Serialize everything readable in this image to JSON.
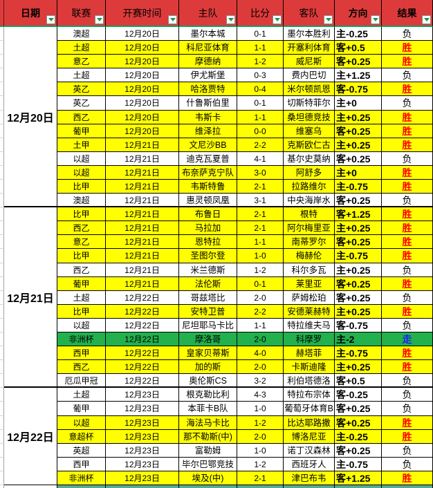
{
  "header": {
    "columns": [
      "日期",
      "联赛",
      "开赛时间",
      "主队",
      "比分",
      "客队",
      "方向",
      "结果"
    ],
    "filter_icon": "dropdown-arrow"
  },
  "date_groups": [
    {
      "label": "12月20日",
      "rows": 13
    },
    {
      "label": "12月21日",
      "rows": 13
    },
    {
      "label": "12月22日",
      "rows": 7
    }
  ],
  "rows": [
    {
      "league": "澳超",
      "kickoff": "12月20日",
      "home": "墨尔本城",
      "score": "0-1",
      "away": "墨尔本胜利",
      "direction": "主-0.25",
      "result": "负",
      "status": "lose"
    },
    {
      "league": "土超",
      "kickoff": "12月20日",
      "home": "科尼亚体育",
      "score": "1-1",
      "away": "开塞利体育",
      "direction": "客+0.5",
      "result": "胜",
      "status": "win"
    },
    {
      "league": "意乙",
      "kickoff": "12月20日",
      "home": "摩德纳",
      "score": "1-2",
      "away": "威尼斯",
      "direction": "客+0.25",
      "result": "胜",
      "status": "win"
    },
    {
      "league": "土超",
      "kickoff": "12月20日",
      "home": "伊尤斯堡",
      "score": "0-3",
      "away": "费内巴切",
      "direction": "主+1.25",
      "result": "负",
      "status": "lose"
    },
    {
      "league": "英乙",
      "kickoff": "12月20日",
      "home": "哈洛贾特",
      "score": "0-4",
      "away": "米尔顿凯恩斯",
      "direction": "客-0.75",
      "result": "胜",
      "status": "win"
    },
    {
      "league": "英乙",
      "kickoff": "12月20日",
      "home": "什鲁斯伯里",
      "score": "0-1",
      "away": "切斯特菲尔德",
      "direction": "主+0",
      "result": "负",
      "status": "lose"
    },
    {
      "league": "西乙",
      "kickoff": "12月20日",
      "home": "韦斯卡",
      "score": "1-1",
      "away": "桑坦德竞技",
      "direction": "主+0.25",
      "result": "胜",
      "status": "win"
    },
    {
      "league": "葡甲",
      "kickoff": "12月20日",
      "home": "维泽拉",
      "score": "0-0",
      "away": "维塞乌",
      "direction": "客+0.25",
      "result": "胜",
      "status": "win"
    },
    {
      "league": "土甲",
      "kickoff": "12月21日",
      "home": "文尼沙BB",
      "score": "2-2",
      "away": "克斯欧仁古库",
      "direction": "主+0.25",
      "result": "胜",
      "status": "win"
    },
    {
      "league": "以超",
      "kickoff": "12月21日",
      "home": "迪克瓦夏普",
      "score": "4-1",
      "away": "基尔史莫纳夏普尔",
      "direction": "客+0.25",
      "result": "负",
      "status": "lose"
    },
    {
      "league": "以超",
      "kickoff": "12月21日",
      "home": "布奈萨克宁队",
      "score": "3-0",
      "away": "阿舒多",
      "direction": "主+0",
      "result": "胜",
      "status": "win"
    },
    {
      "league": "比甲",
      "kickoff": "12月21日",
      "home": "韦斯特鲁",
      "score": "2-1",
      "away": "拉路维尔",
      "direction": "主-0.75",
      "result": "胜",
      "status": "win"
    },
    {
      "league": "澳超",
      "kickoff": "12月21日",
      "home": "惠灵顿凤凰",
      "score": "3-1",
      "away": "中央海岸水手",
      "direction": "客+0.25",
      "result": "负",
      "status": "lose"
    },
    {
      "league": "比甲",
      "kickoff": "12月21日",
      "home": "布鲁日",
      "score": "2-1",
      "away": "根特",
      "direction": "客+1.25",
      "result": "胜",
      "status": "win"
    },
    {
      "league": "西乙",
      "kickoff": "12月21日",
      "home": "马拉加",
      "score": "2-1",
      "away": "阿尔梅里亚",
      "direction": "主+0.25",
      "result": "胜",
      "status": "win"
    },
    {
      "league": "意乙",
      "kickoff": "12月21日",
      "home": "恩特拉",
      "score": "1-1",
      "away": "南蒂罗尔",
      "direction": "客+0.25",
      "result": "胜",
      "status": "win"
    },
    {
      "league": "比甲",
      "kickoff": "12月21日",
      "home": "圣图尔登",
      "score": "1-0",
      "away": "梅赫伦",
      "direction": "主-0.75",
      "result": "胜",
      "status": "win"
    },
    {
      "league": "西乙",
      "kickoff": "12月21日",
      "home": "米兰德斯",
      "score": "1-2",
      "away": "科尔多瓦",
      "direction": "主+0.25",
      "result": "负",
      "status": "lose"
    },
    {
      "league": "葡甲",
      "kickoff": "12月21日",
      "home": "法伦斯",
      "score": "0-1",
      "away": "莱里亚",
      "direction": "客+0.25",
      "result": "胜",
      "status": "win"
    },
    {
      "league": "土超",
      "kickoff": "12月22日",
      "home": "哥兹塔比",
      "score": "2-0",
      "away": "萨姆松珀",
      "direction": "客+0.25",
      "result": "负",
      "status": "lose"
    },
    {
      "league": "比甲",
      "kickoff": "12月22日",
      "home": "安特卫普",
      "score": "2-2",
      "away": "安德莱赫特",
      "direction": "主+0.25",
      "result": "胜",
      "status": "win"
    },
    {
      "league": "以超",
      "kickoff": "12月22日",
      "home": "尼坦耶马卡比",
      "score": "1-1",
      "away": "特拉维夫马卡比",
      "direction": "客-0.75",
      "result": "负",
      "status": "lose"
    },
    {
      "league": "非洲杯",
      "kickoff": "12月22日",
      "home": "摩洛哥",
      "score": "2-0",
      "away": "科摩罗",
      "direction": "主-2",
      "result": "走",
      "status": "draw"
    },
    {
      "league": "西甲",
      "kickoff": "12月22日",
      "home": "皇家贝蒂斯",
      "score": "4-0",
      "away": "赫塔菲",
      "direction": "主-0.75",
      "result": "胜",
      "status": "win"
    },
    {
      "league": "西乙",
      "kickoff": "12月22日",
      "home": "加的斯",
      "score": "2-0",
      "away": "卡斯迪隆",
      "direction": "主+0.25",
      "result": "胜",
      "status": "win"
    },
    {
      "league": "厄瓜甲冠",
      "kickoff": "12月22日",
      "home": "奥伦斯CS",
      "score": "3-2",
      "away": "利伯塔德洛哈",
      "direction": "客+0.5",
      "result": "负",
      "status": "lose"
    },
    {
      "league": "土超",
      "kickoff": "12月23日",
      "home": "根克勒比利",
      "score": "4-3",
      "away": "特拉布宗体育",
      "direction": "客-0.25",
      "result": "负",
      "status": "lose"
    },
    {
      "league": "葡甲",
      "kickoff": "12月23日",
      "home": "本菲卡B队",
      "score": "1-0",
      "away": "葡萄牙体育B",
      "direction": "客+0.25",
      "result": "负",
      "status": "lose"
    },
    {
      "league": "以超",
      "kickoff": "12月23日",
      "home": "海法马卡比",
      "score": "1-2",
      "away": "比达耶路撒冷",
      "direction": "客+0.25",
      "result": "胜",
      "status": "win"
    },
    {
      "league": "意超杯",
      "kickoff": "12月23日",
      "home": "那不勒斯(中)",
      "score": "2-0",
      "away": "博洛尼亚",
      "direction": "主-0.25",
      "result": "胜",
      "status": "win"
    },
    {
      "league": "英超",
      "kickoff": "12月23日",
      "home": "富勒姆",
      "score": "1-0",
      "away": "诺丁汉森林",
      "direction": "客+0.25",
      "result": "负",
      "status": "lose"
    },
    {
      "league": "西甲",
      "kickoff": "12月23日",
      "home": "毕尔巴鄂竞技",
      "score": "1-2",
      "away": "西班牙人",
      "direction": "主-0.75",
      "result": "负",
      "status": "lose"
    },
    {
      "league": "非洲杯",
      "kickoff": "12月23日",
      "home": "埃及(中)",
      "score": "2-1",
      "away": "津巴布韦",
      "direction": "客+1.25",
      "result": "胜",
      "status": "win"
    }
  ],
  "colors": {
    "header_bg": "#dd3b3b",
    "header_underline": "#0fa45a",
    "win_row_bg": "#ffff00",
    "lose_row_bg": "#ffffff",
    "push_row_bg": "#22b14c",
    "win_text": "#ff0000",
    "lose_text": "#000000",
    "push_text": "#1c1cff"
  },
  "legend": {
    "win_label": "胜",
    "lose_label": "负",
    "push_label": "走"
  }
}
